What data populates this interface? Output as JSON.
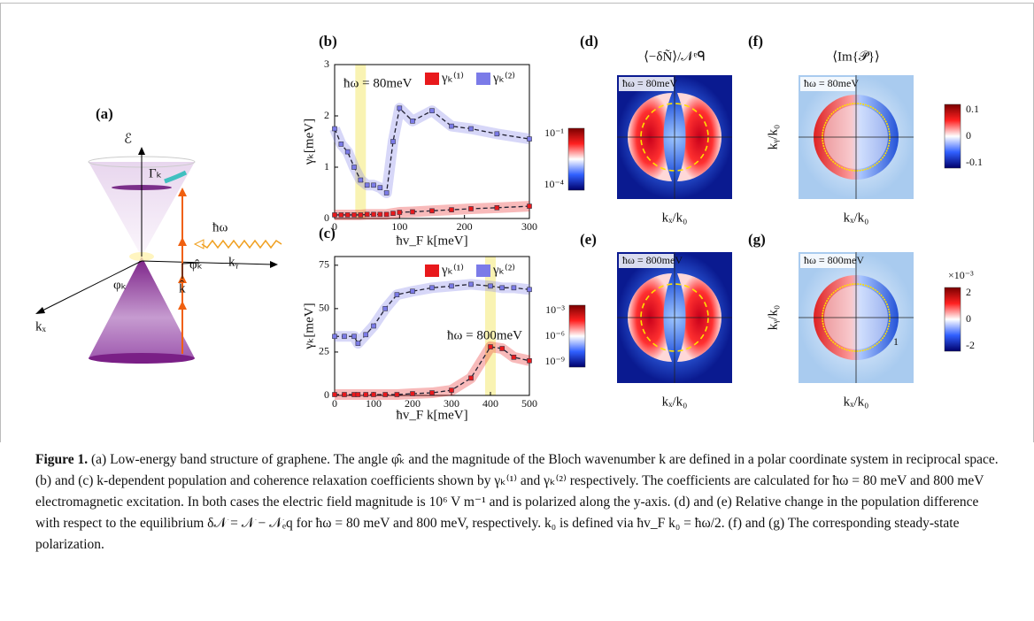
{
  "diagram": {
    "label": "(a)",
    "energy": "ℰ",
    "gamma": "Γₖ",
    "photon": "ħω",
    "phi_hat": "φ̂ₖ",
    "k_hat": "k̂",
    "phi": "φₖ",
    "ky": "kᵧ",
    "kx": "kₓ"
  },
  "chart_data": [
    {
      "type": "line",
      "panel": "(b)",
      "ylabel": "γₖ[meV]",
      "xlabel": "ħv_F k[meV]",
      "annotation": "ħω = 80meV",
      "highlight_x": 40,
      "legend": "upper right",
      "x": [
        0,
        10,
        20,
        30,
        40,
        50,
        60,
        70,
        80,
        90,
        100,
        120,
        150,
        180,
        210,
        250,
        300
      ],
      "xlim": [
        0,
        300
      ],
      "xticks": [
        0,
        100,
        200,
        300
      ],
      "ylim": [
        0,
        3
      ],
      "yticks": [
        0,
        1,
        2,
        3
      ],
      "series": [
        {
          "name": "γₖ⁽¹⁾",
          "color": "#e8191c",
          "values": [
            0.07,
            0.07,
            0.07,
            0.07,
            0.07,
            0.08,
            0.08,
            0.08,
            0.08,
            0.1,
            0.12,
            0.13,
            0.15,
            0.17,
            0.19,
            0.21,
            0.24
          ]
        },
        {
          "name": "γₖ⁽²⁾",
          "color": "#7b7be8",
          "values": [
            1.75,
            1.45,
            1.3,
            1.0,
            0.75,
            0.65,
            0.65,
            0.6,
            0.5,
            1.5,
            2.15,
            1.9,
            2.1,
            1.8,
            1.75,
            1.65,
            1.55
          ]
        }
      ]
    },
    {
      "type": "line",
      "panel": "(c)",
      "ylabel": "γₖ[meV]",
      "xlabel": "ħv_F k[meV]",
      "annotation": "ħω = 800meV",
      "highlight_x": 400,
      "legend": "upper right",
      "x": [
        0,
        25,
        50,
        60,
        80,
        100,
        130,
        160,
        200,
        250,
        300,
        350,
        400,
        430,
        460,
        500
      ],
      "xlim": [
        0,
        500
      ],
      "xticks": [
        0,
        100,
        200,
        300,
        400,
        500
      ],
      "ylim": [
        0,
        80
      ],
      "yticks": [
        0,
        25,
        50,
        75
      ],
      "series": [
        {
          "name": "γₖ⁽¹⁾",
          "color": "#e8191c",
          "values": [
            0.5,
            0.5,
            0.5,
            0.5,
            0.5,
            0.5,
            0.5,
            0.5,
            1,
            1.5,
            3,
            10,
            28,
            27,
            22,
            20
          ]
        },
        {
          "name": "γₖ⁽²⁾",
          "color": "#7b7be8",
          "values": [
            34,
            34,
            34,
            30,
            35,
            40,
            50,
            58,
            60,
            62,
            63,
            64,
            63,
            62,
            62,
            61
          ]
        }
      ]
    }
  ],
  "maps": [
    {
      "panel": "(d)",
      "title": "⟨−δÑ⟩/𝒩ᵉᑫ",
      "inset": "ħω = 80meV",
      "xlabel": "kₓ/k₀",
      "cbar_ticks": [
        "10⁻¹",
        "10⁻⁴"
      ]
    },
    {
      "panel": "(e)",
      "inset": "ħω = 800meV",
      "xlabel": "kₓ/k₀",
      "cbar_ticks": [
        "10⁻³",
        "10⁻⁶",
        "10⁻⁹"
      ]
    },
    {
      "panel": "(f)",
      "title": "⟨Im{𝒫̃}⟩",
      "inset": "ħω = 80meV",
      "xlabel": "kₓ/k₀",
      "ylabel": "kᵧ/k₀",
      "cbar_ticks": [
        "0.1",
        "0",
        "-0.1"
      ]
    },
    {
      "panel": "(g)",
      "inset": "ħω = 800meV",
      "xlabel": "kₓ/k₀",
      "ylabel": "kᵧ/k₀",
      "cbar_ticks": [
        "2",
        "0",
        "-2"
      ],
      "cbar_scale": "×10⁻³",
      "marker": "1"
    }
  ],
  "caption": {
    "label": "Figure 1.",
    "text": " (a) Low-energy band structure of graphene. The angle φ̂ₖ and the magnitude of the Bloch wavenumber k are defined in a polar coordinate system in reciprocal space. (b) and (c) k-dependent population and coherence relaxation coefficients shown by γₖ⁽¹⁾ and γₖ⁽²⁾ respectively. The coefficients are calculated for ħω = 80 meV and 800 meV electromagnetic excitation. In both cases the electric field magnitude is 10⁶ V m⁻¹ and is polarized along the y-axis. (d) and (e) Relative change in the population difference with respect to the equilibrium δ𝒩 = 𝒩 − 𝒩ₑq for ħω = 80 meV and 800 meV, respectively. k₀ is defined via ħv_F k₀ = ħω/2. (f) and (g) The corresponding steady-state polarization."
  }
}
